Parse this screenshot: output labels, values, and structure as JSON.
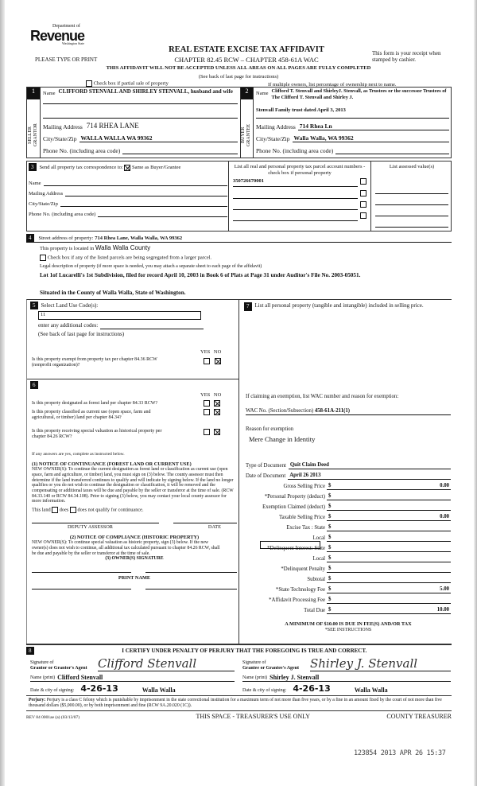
{
  "header": {
    "logo_small": "Department of",
    "logo_main": "Revenue",
    "logo_state": "Washington State",
    "please": "PLEASE TYPE OR PRINT",
    "title": "REAL ESTATE EXCISE TAX AFFIDAVIT",
    "chapter": "CHAPTER 82.45 RCW – CHAPTER 458-61A WAC",
    "warning": "THIS AFFIDAVIT WILL NOT BE ACCEPTED UNLESS ALL AREAS ON ALL PAGES ARE FULLY COMPLETED",
    "see_back": "(See back of last page for instructions)",
    "receipt": "This form is your receipt when stamped by cashier.",
    "partial_sale": "Check box if partial sale of property",
    "multiple_owners": "If multiple owners, list percentage of ownership next to name."
  },
  "seller": {
    "num": "1",
    "side_label": "SELLER GRANTOR",
    "name_label": "Name",
    "name": "CLIFFORD STENVALL AND SHIRLEY STENVALL, husband and wife",
    "address_label": "Mailing Address",
    "address": "714 RHEA LANE",
    "city_label": "City/State/Zip",
    "city": "WALLA WALLA  WA  99362",
    "phone_label": "Phone No. (including area code)",
    "phone": ""
  },
  "buyer": {
    "num": "2",
    "side_label": "BUYER GRANTEE",
    "name_label": "Name",
    "name": "Clifford T. Stenvall and ShirleyJ. Stenvall, as Trustees or the successor Trustees of The Clifford T. Stenvall and Shirley J.",
    "name_cont": "Stenvall Family trust dated April 3, 2013",
    "address_label": "Mailing Address",
    "address": "714 Rhea Ln",
    "city_label": "City/State/Zip",
    "city": "Walla Walla, WA  99362",
    "phone_label": "Phone No. (including area code)",
    "phone": ""
  },
  "section3": {
    "num": "3",
    "send_label": "Send all property tax correspondence to:",
    "same_as": "Same as Buyer/Grantee",
    "same_checked": true,
    "name_label": "Name",
    "address_label": "Mailing Address",
    "city_label": "City/State/Zip",
    "phone_label": "Phone No. (including area code)",
    "parcel_header": "List all real and personal property tax parcel account numbers - check box if personal property",
    "assessed_header": "List assessed value(s)",
    "parcels": [
      "350726670001",
      "",
      "",
      ""
    ]
  },
  "section4": {
    "num": "4",
    "street_label": "Street address of property:",
    "street": "714 Rhea Lane, Walla Walla, WA  99362",
    "located_label": "This property is located in",
    "county": "Walla Walla County",
    "segregated": "Check box if any of the listed parcels are being segregated from a larger parcel.",
    "legal_label": "Legal description of property (if more space is needed, you may attach a separate sheet to each page of the affidavit)",
    "legal": "Lot 1of Lucarelli's 1st Subdivision, filed for record April 10, 2003 in Book 6 of Plats at Page 31 under Auditor's File No. 2003-05051.",
    "situated": "Situated in the County of Walla Walla, State of Washington."
  },
  "section5": {
    "num": "5",
    "label": "Select Land Use Code(s):",
    "code": "11",
    "additional": "enter any additional codes:",
    "see_back": "(See back of last page for instructions)",
    "yes": "YES",
    "no": "NO",
    "exempt_q": "Is this property exempt from property tax per chapter 84.36 RCW (nonprofit organization)?"
  },
  "section6": {
    "num": "6",
    "yes": "YES",
    "no": "NO",
    "q_forest": "Is this property designated as forest land per chapter 84.33 RCW?",
    "q_current": "Is this property classified as current use (open space, farm and agricultural, or timber) land per chapter 84.34?",
    "q_historic": "Is this property receiving special valuation as historical property per chapter 84.26 RCW?",
    "if_yes": "If any answers are yes, complete as instructed below.",
    "notice1_title": "(1) NOTICE OF CONTINUANCE (FOREST LAND OR CURRENT USE)",
    "notice1_text": "NEW OWNER(S): To continue the current designation as forest land or classification as current use (open space, farm and agriculture, or timber) land, you must sign on (3) below. The county assessor must then determine if the land transferred continues to qualify and will indicate by signing below. If the land no longer qualifies or you do not wish to continue the designation or classification, it will be removed and the compensating or additional taxes will be due and payable by the seller or transferor at the time of sale. (RCW 84.33.140 or RCW 84.34.108). Prior to signing (3) below, you may contact your local county assessor for more information.",
    "this_land": "This land",
    "does": "does",
    "does_not": "does not  qualify for continuance.",
    "deputy": "DEPUTY ASSESSOR",
    "date": "DATE",
    "notice2_title": "(2) NOTICE OF COMPLIANCE (HISTORIC PROPERTY)",
    "notice2_text": "NEW OWNER(S): To continue special valuation as historic property, sign (3) below. If the new owner(s) does not wish to continue, all additional tax calculated pursuant to chapter 84.26 RCW, shall be due and payable by the seller or transferor at the time of sale.",
    "owner_sig": "(3) OWNER(S) SIGNATURE",
    "print_name": "PRINT NAME"
  },
  "section7": {
    "num": "7",
    "label": "List all personal property (tangible and intangible) included in selling price.",
    "exemption_label": "If claiming an exemption, list WAC number and reason for exemption:",
    "wac_label": "WAC No. (Section/Subsection)",
    "wac": "458-61A-211(1)",
    "reason_label": "Reason for exemption",
    "reason": "Mere Change in Identity"
  },
  "fees": {
    "type_label": "Type of Document",
    "type": "Quit Claim Deed",
    "date_label": "Date of Document",
    "date": "April 26 2013",
    "rows": [
      {
        "label": "Gross Selling Price",
        "value": "0.00"
      },
      {
        "label": "*Personal Property (deduct)",
        "value": ""
      },
      {
        "label": "Exemption Claimed (deduct)",
        "value": ""
      },
      {
        "label": "Taxable Selling Price",
        "value": "0.00"
      },
      {
        "label": "Excise Tax : State",
        "value": ""
      },
      {
        "label": "Local",
        "value": ""
      },
      {
        "label": "*Delinquent Interest:  State",
        "value": ""
      },
      {
        "label": "Local",
        "value": ""
      },
      {
        "label": "*Delinquent Penalty",
        "value": ""
      },
      {
        "label": "Subtotal",
        "value": ""
      },
      {
        "label": "*State Technology Fee",
        "value": "5.00"
      },
      {
        "label": "*Affidavit Processing Fee",
        "value": ""
      },
      {
        "label": "Total Due",
        "value": "10.00"
      }
    ],
    "currency": "$",
    "minimum": "A MINIMUM OF $10.00 IS DUE IN FEE(S) AND/OR TAX",
    "see_instr": "*SEE INSTRUCTIONS"
  },
  "section8": {
    "num": "8",
    "certify": "I CERTIFY UNDER PENALTY OF PERJURY THAT THE FOREGOING IS TRUE AND CORRECT.",
    "sig_grantor_label1": "Signature of",
    "sig_grantor_label2": "Grantor or Grantor's Agent",
    "sig_grantor": "Clifford Stenvall",
    "grantor_print_label": "Name (print)",
    "grantor_print": "Clifford Stenvall",
    "grantor_date_label": "Date & city of signing:",
    "grantor_date": "4-26-13",
    "grantor_city": "Walla Walla",
    "sig_grantee_label1": "Signature of",
    "sig_grantee_label2": "Grantee or Grantee's Agent",
    "sig_grantee": "Shirley J. Stenvall",
    "grantee_print_label": "Name (print)",
    "grantee_print": "Shirley J. Stenvall",
    "grantee_date_label": "Date & city of signing:",
    "grantee_date": "4-26-13",
    "grantee_city": "Walla Walla"
  },
  "footer": {
    "perjury_bold": "Perjury:",
    "perjury": "Perjury is a class C felony which is punishable by imprisonment in the state correctional institution for a maximum term of not more than five years, or by a fine in an amount fixed by the court of not more than five thousand dollars ($5,000.00), or by both imprisonment and fine (RCW 9A.20.020 (1C)).",
    "form_no": "REV 84 0001ae (a) (03/13/07)",
    "treasurer_space": "THIS SPACE - TREASURER'S USE ONLY",
    "county_treasurer": "COUNTY TREASURER",
    "stamp": "123854 2013 APR 26 15:37"
  }
}
